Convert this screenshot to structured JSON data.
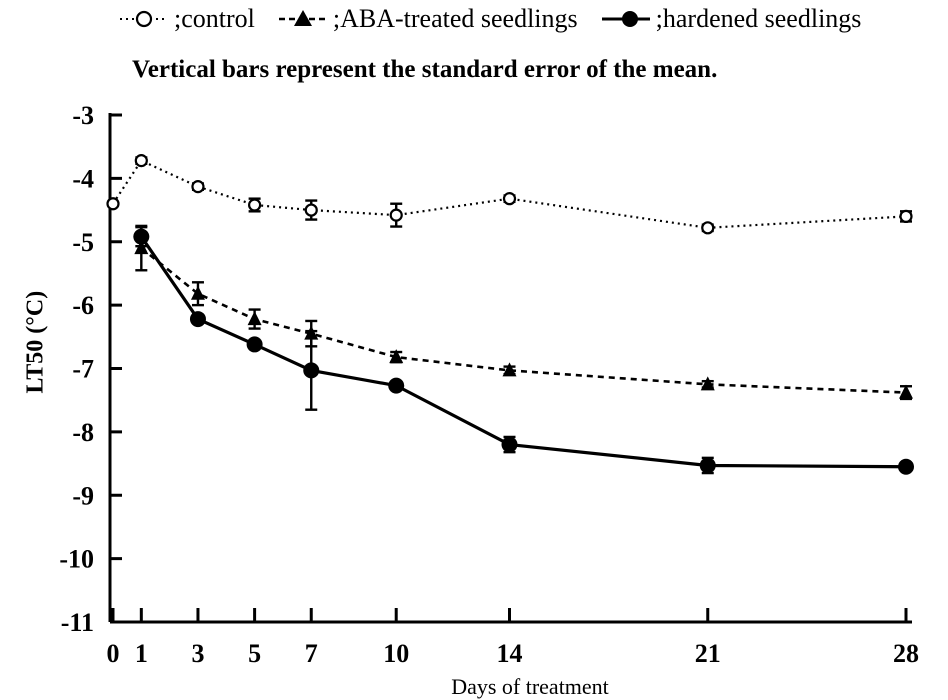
{
  "chart_data": {
    "type": "line",
    "title": "",
    "subtitle": "Vertical bars represent the standard error of the mean.",
    "xlabel": "Days of treatment",
    "ylabel": "LT50 (°C)",
    "xlim": [
      0,
      28
    ],
    "ylim": [
      -11,
      -3
    ],
    "xticks": [
      0,
      1,
      3,
      5,
      7,
      10,
      14,
      21,
      28
    ],
    "yticks": [
      -3,
      -4,
      -5,
      -6,
      -7,
      -8,
      -9,
      -10,
      -11
    ],
    "grid": false,
    "legend_position": "top",
    "series": [
      {
        "name": ";control",
        "style": "dotted-open-circle",
        "x": [
          0,
          1,
          3,
          5,
          7,
          10,
          14,
          21,
          28
        ],
        "y": [
          -4.4,
          -3.72,
          -4.13,
          -4.42,
          -4.5,
          -4.58,
          -4.32,
          -4.78,
          -4.6
        ],
        "err": [
          0,
          0.05,
          0.05,
          0.1,
          0.15,
          0.18,
          0.05,
          0.05,
          0.08
        ]
      },
      {
        "name": ";ABA-treated seedlings",
        "style": "dashed-filled-triangle",
        "x": [
          1,
          3,
          5,
          7,
          10,
          14,
          21,
          28
        ],
        "y": [
          -5.1,
          -5.82,
          -6.22,
          -6.45,
          -6.82,
          -7.03,
          -7.25,
          -7.38
        ],
        "err": [
          0.35,
          0.18,
          0.15,
          0.2,
          0.08,
          0.06,
          0.05,
          0.1
        ]
      },
      {
        "name": ";hardened seedlings",
        "style": "solid-filled-circle",
        "x": [
          1,
          3,
          5,
          7,
          10,
          14,
          21,
          28
        ],
        "y": [
          -4.92,
          -6.22,
          -6.62,
          -7.03,
          -7.27,
          -8.2,
          -8.53,
          -8.55
        ],
        "err": [
          0.15,
          0.05,
          0.05,
          0.62,
          0.05,
          0.12,
          0.12,
          0.05
        ]
      }
    ]
  },
  "legend": {
    "control": ";control",
    "aba": ";ABA-treated seedlings",
    "hardened": ";hardened seedlings"
  }
}
